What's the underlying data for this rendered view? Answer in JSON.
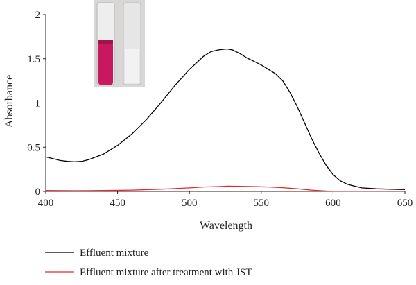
{
  "chart_data": {
    "type": "line",
    "xlabel": "Wavelength",
    "ylabel": "Absorbance",
    "xlim": [
      400,
      650
    ],
    "ylim": [
      0,
      2
    ],
    "x_ticks": [
      "400",
      "450",
      "500",
      "550",
      "600",
      "650"
    ],
    "y_ticks": [
      "0",
      "0.5",
      "1",
      "1.5",
      "2"
    ],
    "grid": false,
    "legend_position": "below",
    "series": [
      {
        "name": "Effluent mixture",
        "color": "#000000",
        "x": [
          400,
          405,
          410,
          415,
          420,
          425,
          430,
          440,
          450,
          460,
          470,
          480,
          490,
          500,
          510,
          515,
          520,
          525,
          527,
          530,
          535,
          540,
          545,
          550,
          555,
          560,
          565,
          570,
          575,
          580,
          585,
          590,
          595,
          600,
          605,
          610,
          615,
          620,
          630,
          640,
          650
        ],
        "y": [
          0.39,
          0.37,
          0.35,
          0.34,
          0.335,
          0.34,
          0.36,
          0.42,
          0.52,
          0.65,
          0.81,
          1.0,
          1.2,
          1.38,
          1.53,
          1.58,
          1.6,
          1.61,
          1.61,
          1.6,
          1.56,
          1.51,
          1.47,
          1.43,
          1.38,
          1.33,
          1.25,
          1.12,
          0.96,
          0.78,
          0.6,
          0.44,
          0.3,
          0.19,
          0.12,
          0.08,
          0.06,
          0.04,
          0.03,
          0.025,
          0.02
        ]
      },
      {
        "name": "Effluent mixture after treatment with JST",
        "color": "#e8262a",
        "x": [
          400,
          420,
          440,
          460,
          480,
          500,
          510,
          520,
          527,
          535,
          545,
          555,
          565,
          575,
          585,
          595,
          600,
          620,
          640,
          650
        ],
        "y": [
          0.01,
          0.008,
          0.01,
          0.015,
          0.025,
          0.04,
          0.05,
          0.055,
          0.06,
          0.058,
          0.055,
          0.05,
          0.042,
          0.03,
          0.015,
          0.005,
          0.002,
          0.002,
          0.003,
          0.003
        ]
      }
    ]
  },
  "inset_photo": {
    "tube_left_color": "#c8195f",
    "tube_right_color": "#e6e6e6",
    "background_color": "#d9d6d6"
  }
}
